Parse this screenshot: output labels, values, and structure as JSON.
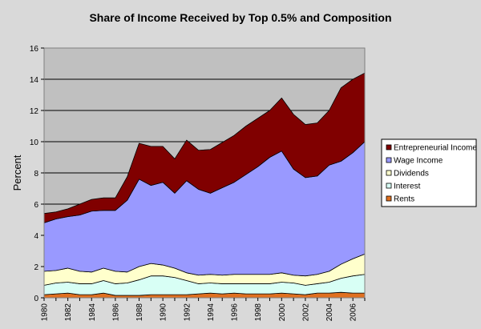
{
  "chart_data": {
    "type": "area",
    "stacked": true,
    "title": "Share of Income Received by Top 0.5% and Composition",
    "xlabel": "",
    "ylabel": "Percent",
    "ylim": [
      0,
      16
    ],
    "yticks": [
      "0",
      "2",
      "4",
      "6",
      "8",
      "10",
      "12",
      "14",
      "16"
    ],
    "xticks": [
      "1980",
      "1982",
      "1984",
      "1986",
      "1988",
      "1990",
      "1992",
      "1994",
      "1996",
      "1998",
      "2000",
      "2002",
      "2004",
      "2006"
    ],
    "x": [
      1980,
      1981,
      1982,
      1983,
      1984,
      1985,
      1986,
      1987,
      1988,
      1989,
      1990,
      1991,
      1992,
      1993,
      1994,
      1995,
      1996,
      1997,
      1998,
      1999,
      2000,
      2001,
      2002,
      2003,
      2004,
      2005,
      2006,
      2007
    ],
    "grid": true,
    "legend_position": "right",
    "series": [
      {
        "name": "Rents",
        "color": "#e07020",
        "values": [
          0.2,
          0.25,
          0.3,
          0.2,
          0.2,
          0.3,
          0.15,
          0.15,
          0.15,
          0.2,
          0.2,
          0.2,
          0.2,
          0.25,
          0.3,
          0.25,
          0.3,
          0.25,
          0.25,
          0.25,
          0.3,
          0.25,
          0.2,
          0.3,
          0.3,
          0.35,
          0.3,
          0.3
        ]
      },
      {
        "name": "Interest",
        "color": "#d8fff5",
        "values": [
          0.6,
          0.7,
          0.7,
          0.7,
          0.7,
          0.8,
          0.75,
          0.8,
          1.0,
          1.2,
          1.2,
          1.1,
          0.9,
          0.65,
          0.65,
          0.65,
          0.6,
          0.65,
          0.65,
          0.65,
          0.7,
          0.7,
          0.6,
          0.6,
          0.7,
          0.9,
          1.1,
          1.2
        ]
      },
      {
        "name": "Dividends",
        "color": "#ffffcc",
        "values": [
          0.9,
          0.8,
          0.9,
          0.8,
          0.75,
          0.8,
          0.8,
          0.7,
          0.85,
          0.8,
          0.7,
          0.6,
          0.5,
          0.55,
          0.55,
          0.55,
          0.6,
          0.6,
          0.6,
          0.6,
          0.6,
          0.5,
          0.6,
          0.6,
          0.7,
          0.9,
          1.1,
          1.3
        ]
      },
      {
        "name": "Wage Income",
        "color": "#9999ff",
        "values": [
          3.1,
          3.3,
          3.3,
          3.6,
          3.9,
          3.7,
          3.9,
          4.6,
          5.6,
          5.0,
          5.3,
          4.8,
          5.9,
          5.5,
          5.2,
          5.6,
          5.9,
          6.4,
          6.9,
          7.5,
          7.8,
          6.8,
          6.3,
          6.3,
          6.8,
          6.6,
          6.8,
          7.2
        ]
      },
      {
        "name": "Entrepreneurial Income",
        "color": "#800000",
        "values": [
          0.6,
          0.45,
          0.5,
          0.7,
          0.75,
          0.8,
          0.8,
          1.5,
          2.3,
          2.5,
          2.3,
          2.2,
          2.6,
          2.5,
          2.8,
          2.9,
          3.0,
          3.1,
          3.1,
          3.0,
          3.4,
          3.5,
          3.4,
          3.4,
          3.5,
          4.7,
          4.7,
          4.4
        ]
      }
    ]
  }
}
